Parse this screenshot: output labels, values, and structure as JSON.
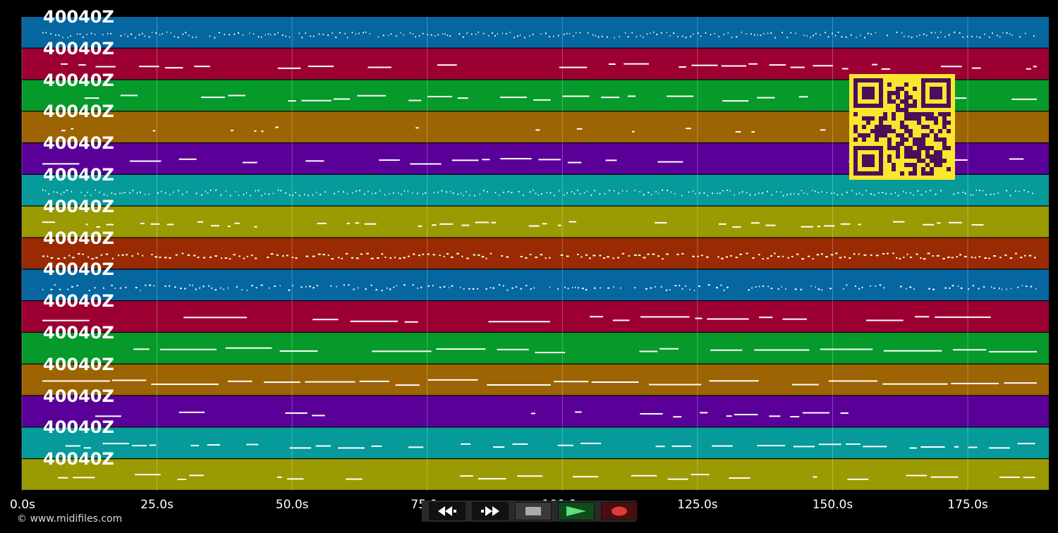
{
  "tracks": [
    {
      "label": "40040Z",
      "color": "#0566a0"
    },
    {
      "label": "40040Z",
      "color": "#9c0032"
    },
    {
      "label": "40040Z",
      "color": "#059a2a"
    },
    {
      "label": "40040Z",
      "color": "#9c6402"
    },
    {
      "label": "40040Z",
      "color": "#5a0098"
    },
    {
      "label": "40040Z",
      "color": "#069a9a"
    },
    {
      "label": "40040Z",
      "color": "#9a9a02"
    },
    {
      "label": "40040Z",
      "color": "#9a2a02"
    },
    {
      "label": "40040Z",
      "color": "#0566a0"
    },
    {
      "label": "40040Z",
      "color": "#9c0032"
    },
    {
      "label": "40040Z",
      "color": "#059a2a"
    },
    {
      "label": "40040Z",
      "color": "#9c6402"
    },
    {
      "label": "40040Z",
      "color": "#5a0098"
    },
    {
      "label": "40040Z",
      "color": "#069a9a"
    },
    {
      "label": "40040Z",
      "color": "#9a9a02"
    }
  ],
  "timeline": {
    "duration_s": 190,
    "ticks": [
      "0.0s",
      "25.0s",
      "50.0s",
      "75.0s",
      "100.0s",
      "125.0s",
      "150.0s",
      "175.0s"
    ],
    "tick_values": [
      0,
      25,
      50,
      75,
      100,
      125,
      150,
      175
    ]
  },
  "copyright": "© www.midifiles.com",
  "transport": {
    "rewind_icon": "rewind-icon",
    "forward_icon": "fast-forward-icon",
    "stop_icon": "stop-icon",
    "play_icon": "play-icon",
    "record_icon": "record-icon"
  },
  "qr_icon": "qr-code-icon"
}
